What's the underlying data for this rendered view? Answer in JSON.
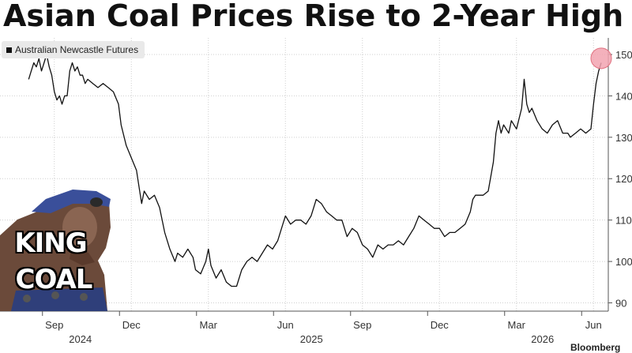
{
  "headline": "Asian Coal Prices Rise to 2-Year High",
  "source": "Bloomberg",
  "overlay": {
    "line1": "KING",
    "line2": "COAL"
  },
  "chart_data": {
    "type": "line",
    "title": "Asian Coal Prices Rise to 2-Year High",
    "ylim": [
      88,
      154
    ],
    "yticks": [
      "90",
      "100",
      "110",
      "120",
      "130",
      "140",
      "150"
    ],
    "grid": true,
    "legend_position": "top-left",
    "line_color": "#111111",
    "highlight_color": "#f2a3b0",
    "months": [
      {
        "label": "Sep",
        "year": "2024",
        "x": 0.5
      },
      {
        "label": "Dec",
        "year": "",
        "x": 3.5
      },
      {
        "label": "Mar",
        "year": "",
        "x": 6.5
      },
      {
        "label": "Jun",
        "year": "2025",
        "x": 9.5
      },
      {
        "label": "Sep",
        "year": "",
        "x": 12.5
      },
      {
        "label": "Dec",
        "year": "",
        "x": 15.5
      },
      {
        "label": "Mar",
        "year": "2026",
        "x": 18.5
      },
      {
        "label": "Jun",
        "year": "",
        "x": 21.5
      }
    ],
    "series": [
      {
        "name": "Australian Newcastle Futures",
        "points": [
          [
            -0.5,
            144
          ],
          [
            -0.4,
            146
          ],
          [
            -0.3,
            148
          ],
          [
            -0.2,
            147
          ],
          [
            -0.1,
            149
          ],
          [
            0.0,
            146
          ],
          [
            0.1,
            148
          ],
          [
            0.2,
            150
          ],
          [
            0.3,
            147
          ],
          [
            0.4,
            145
          ],
          [
            0.5,
            141
          ],
          [
            0.6,
            139
          ],
          [
            0.7,
            140
          ],
          [
            0.8,
            138
          ],
          [
            0.9,
            140
          ],
          [
            1.0,
            140
          ],
          [
            1.1,
            146
          ],
          [
            1.2,
            148
          ],
          [
            1.3,
            146
          ],
          [
            1.4,
            147
          ],
          [
            1.5,
            145
          ],
          [
            1.6,
            145
          ],
          [
            1.7,
            143
          ],
          [
            1.8,
            144
          ],
          [
            2.0,
            143
          ],
          [
            2.2,
            142
          ],
          [
            2.4,
            143
          ],
          [
            2.6,
            142
          ],
          [
            2.8,
            141
          ],
          [
            3.0,
            138
          ],
          [
            3.1,
            133
          ],
          [
            3.3,
            128
          ],
          [
            3.5,
            125
          ],
          [
            3.7,
            122
          ],
          [
            3.8,
            118
          ],
          [
            3.9,
            114
          ],
          [
            4.0,
            117
          ],
          [
            4.2,
            115
          ],
          [
            4.4,
            116
          ],
          [
            4.6,
            113
          ],
          [
            4.8,
            107
          ],
          [
            5.0,
            103
          ],
          [
            5.2,
            100
          ],
          [
            5.3,
            102
          ],
          [
            5.5,
            101
          ],
          [
            5.7,
            103
          ],
          [
            5.9,
            101
          ],
          [
            6.0,
            98
          ],
          [
            6.2,
            97
          ],
          [
            6.4,
            100
          ],
          [
            6.5,
            103
          ],
          [
            6.6,
            99
          ],
          [
            6.8,
            96
          ],
          [
            7.0,
            98
          ],
          [
            7.2,
            95
          ],
          [
            7.4,
            94
          ],
          [
            7.6,
            94
          ],
          [
            7.8,
            98
          ],
          [
            8.0,
            100
          ],
          [
            8.2,
            101
          ],
          [
            8.4,
            100
          ],
          [
            8.6,
            102
          ],
          [
            8.8,
            104
          ],
          [
            9.0,
            103
          ],
          [
            9.2,
            105
          ],
          [
            9.4,
            109
          ],
          [
            9.5,
            111
          ],
          [
            9.7,
            109
          ],
          [
            9.9,
            110
          ],
          [
            10.1,
            110
          ],
          [
            10.3,
            109
          ],
          [
            10.5,
            111
          ],
          [
            10.7,
            115
          ],
          [
            10.9,
            114
          ],
          [
            11.1,
            112
          ],
          [
            11.3,
            111
          ],
          [
            11.5,
            110
          ],
          [
            11.7,
            110
          ],
          [
            11.9,
            106
          ],
          [
            12.1,
            108
          ],
          [
            12.3,
            107
          ],
          [
            12.5,
            104
          ],
          [
            12.7,
            103
          ],
          [
            12.9,
            101
          ],
          [
            13.1,
            104
          ],
          [
            13.3,
            103
          ],
          [
            13.5,
            104
          ],
          [
            13.7,
            104
          ],
          [
            13.9,
            105
          ],
          [
            14.1,
            104
          ],
          [
            14.3,
            106
          ],
          [
            14.5,
            108
          ],
          [
            14.7,
            111
          ],
          [
            14.9,
            110
          ],
          [
            15.1,
            109
          ],
          [
            15.3,
            108
          ],
          [
            15.5,
            108
          ],
          [
            15.7,
            106
          ],
          [
            15.9,
            107
          ],
          [
            16.1,
            107
          ],
          [
            16.3,
            108
          ],
          [
            16.5,
            109
          ],
          [
            16.7,
            112
          ],
          [
            16.8,
            115
          ],
          [
            16.9,
            116
          ],
          [
            17.0,
            116
          ],
          [
            17.2,
            116
          ],
          [
            17.4,
            117
          ],
          [
            17.6,
            124
          ],
          [
            17.7,
            131
          ],
          [
            17.8,
            134
          ],
          [
            17.9,
            131
          ],
          [
            18.0,
            133
          ],
          [
            18.2,
            131
          ],
          [
            18.3,
            134
          ],
          [
            18.5,
            132
          ],
          [
            18.7,
            137
          ],
          [
            18.8,
            144
          ],
          [
            18.9,
            138
          ],
          [
            19.0,
            136
          ],
          [
            19.1,
            137
          ],
          [
            19.3,
            134
          ],
          [
            19.5,
            132
          ],
          [
            19.7,
            131
          ],
          [
            19.9,
            133
          ],
          [
            20.1,
            134
          ],
          [
            20.3,
            131
          ],
          [
            20.5,
            131
          ],
          [
            20.6,
            130
          ],
          [
            20.8,
            131
          ],
          [
            21.0,
            132
          ],
          [
            21.2,
            131
          ],
          [
            21.4,
            132
          ],
          [
            21.5,
            138
          ],
          [
            21.6,
            143
          ],
          [
            21.7,
            146
          ],
          [
            21.8,
            148
          ]
        ]
      }
    ],
    "highlight_point": [
      21.8,
      148.5
    ]
  }
}
